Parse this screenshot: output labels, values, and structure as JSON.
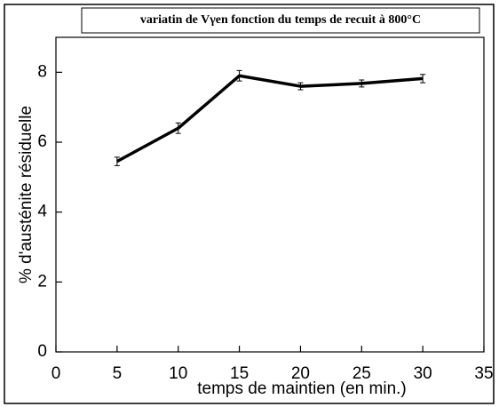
{
  "chart_data": {
    "type": "line",
    "title": "variatin de Vγen fonction du temps de recuit à 800°C",
    "xlabel": "temps de maintien (en min.)",
    "ylabel": "% d'austénite résiduelle",
    "x": [
      5,
      10,
      15,
      20,
      25,
      30
    ],
    "series": [
      {
        "color": "#000000",
        "values": [
          5.45,
          6.4,
          7.9,
          7.6,
          7.68,
          7.82
        ],
        "errors": [
          0.12,
          0.15,
          0.15,
          0.1,
          0.1,
          0.12
        ]
      }
    ],
    "xlim": [
      0,
      35
    ],
    "xticks": [
      0,
      5,
      10,
      15,
      20,
      25,
      30,
      35
    ],
    "ylim": [
      0,
      9
    ],
    "yticks": [
      0,
      2,
      4,
      6,
      8
    ]
  }
}
